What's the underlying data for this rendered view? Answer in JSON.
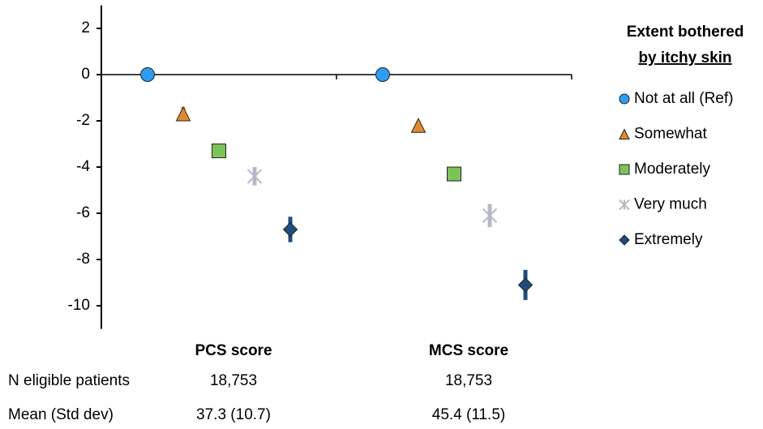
{
  "chart_data": {
    "type": "errorpoint",
    "categories": [
      "PCS score",
      "MCS score"
    ],
    "ylim": [
      -11,
      3
    ],
    "yticks": [
      2,
      0,
      -2,
      -4,
      -6,
      -8,
      -10
    ],
    "legend_title": [
      "Extent bothered",
      "by itchy skin"
    ],
    "series": [
      {
        "name": "Not at all (Ref)",
        "color": "#2e9cf2",
        "marker": "circle",
        "values": [
          0,
          0
        ],
        "errors": [
          0,
          0
        ]
      },
      {
        "name": "Somewhat",
        "color": "#e08a2c",
        "marker": "triangle",
        "values": [
          -1.7,
          -2.2
        ],
        "errors": [
          0.3,
          0.2
        ]
      },
      {
        "name": "Moderately",
        "color": "#7cc45a",
        "marker": "square",
        "values": [
          -3.3,
          -4.3
        ],
        "errors": [
          0.15,
          0.3
        ]
      },
      {
        "name": "Very much",
        "color": "#b3bac6",
        "marker": "asterisk",
        "values": [
          -4.4,
          -6.1
        ],
        "errors": [
          0.4,
          0.5
        ]
      },
      {
        "name": "Extremely",
        "color": "#1f4e79",
        "marker": "diamond",
        "values": [
          -6.7,
          -9.1
        ],
        "errors": [
          0.55,
          0.65
        ]
      }
    ],
    "table": {
      "rows": [
        {
          "label": "N eligible patients",
          "values": [
            "18,753",
            "18,753"
          ]
        },
        {
          "label": "Mean (Std dev)",
          "values": [
            "37.3 (10.7)",
            "45.4 (11.5)"
          ]
        }
      ]
    }
  }
}
